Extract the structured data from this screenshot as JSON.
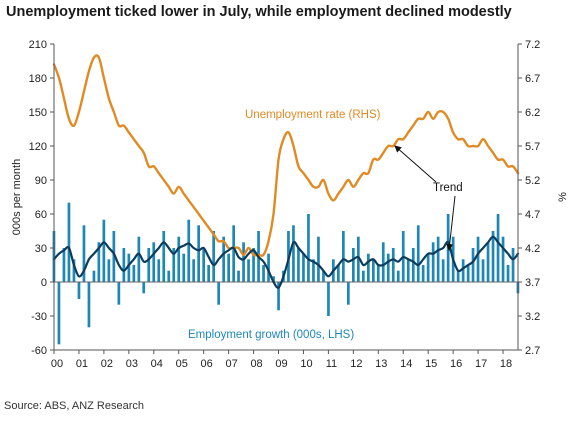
{
  "title": "Unemployment ticked lower in July, while employment declined modestly",
  "source": "Source: ABS, ANZ Research",
  "chart_data": {
    "type": "bar",
    "title": "Unemployment ticked lower in July, while employment declined modestly",
    "ylabel": "000s per month",
    "y2label": "%",
    "ylim": [
      -60,
      210
    ],
    "y2lim": [
      2.7,
      7.2
    ],
    "yticks": [
      "210",
      "180",
      "150",
      "120",
      "90",
      "60",
      "30",
      "0",
      "-30",
      "-60"
    ],
    "y2ticks": [
      "7.2",
      "6.7",
      "6.2",
      "5.7",
      "5.2",
      "4.7",
      "4.2",
      "3.7",
      "3.2",
      "2.7"
    ],
    "xticks": [
      "00",
      "01",
      "02",
      "03",
      "04",
      "05",
      "06",
      "07",
      "08",
      "09",
      "10",
      "11",
      "12",
      "13",
      "14",
      "15",
      "16",
      "17",
      "18"
    ],
    "x_range": [
      2000.0,
      2018.6
    ],
    "grid": false,
    "colors": {
      "employment_bars": "#1f87b5",
      "employment_trend": "#0d3b5c",
      "unemployment": "#e08a23",
      "unemployment_trend": "#cf7512"
    },
    "annotations": {
      "unemployment_label": "Unemployment rate (RHS)",
      "employment_label": "Employment growth (000s, LHS)",
      "trend_label": "Trend"
    },
    "series": [
      {
        "name": "Unemployment rate (RHS)",
        "axis": "right",
        "kind": "line",
        "x": [
          2000.0,
          2000.2,
          2000.4,
          2000.6,
          2000.8,
          2001.0,
          2001.2,
          2001.4,
          2001.6,
          2001.8,
          2002.0,
          2002.2,
          2002.4,
          2002.6,
          2002.8,
          2003.0,
          2003.2,
          2003.4,
          2003.6,
          2003.8,
          2004.0,
          2004.2,
          2004.4,
          2004.6,
          2004.8,
          2005.0,
          2005.2,
          2005.4,
          2005.6,
          2005.8,
          2006.0,
          2006.2,
          2006.4,
          2006.6,
          2006.8,
          2007.0,
          2007.2,
          2007.4,
          2007.6,
          2007.8,
          2008.0,
          2008.2,
          2008.4,
          2008.6,
          2008.8,
          2009.0,
          2009.2,
          2009.4,
          2009.6,
          2009.8,
          2010.0,
          2010.2,
          2010.4,
          2010.6,
          2010.8,
          2011.0,
          2011.2,
          2011.4,
          2011.6,
          2011.8,
          2012.0,
          2012.2,
          2012.4,
          2012.6,
          2012.8,
          2013.0,
          2013.2,
          2013.4,
          2013.6,
          2013.8,
          2014.0,
          2014.2,
          2014.4,
          2014.6,
          2014.8,
          2015.0,
          2015.2,
          2015.4,
          2015.6,
          2015.8,
          2016.0,
          2016.2,
          2016.4,
          2016.6,
          2016.8,
          2017.0,
          2017.2,
          2017.4,
          2017.6,
          2017.8,
          2018.0,
          2018.2,
          2018.4,
          2018.6
        ],
        "values": [
          6.9,
          6.7,
          6.4,
          6.1,
          6.0,
          6.2,
          6.5,
          6.8,
          7.0,
          7.0,
          6.7,
          6.4,
          6.2,
          6.0,
          6.0,
          5.9,
          5.8,
          5.7,
          5.6,
          5.4,
          5.4,
          5.3,
          5.2,
          5.1,
          5.0,
          5.1,
          5.0,
          4.9,
          4.8,
          4.7,
          4.6,
          4.5,
          4.4,
          4.3,
          4.3,
          4.2,
          4.2,
          4.2,
          4.1,
          4.2,
          4.1,
          4.1,
          4.1,
          4.3,
          4.7,
          5.5,
          5.8,
          5.9,
          5.7,
          5.4,
          5.3,
          5.2,
          5.1,
          5.1,
          5.2,
          5.0,
          4.9,
          5.0,
          5.1,
          5.2,
          5.1,
          5.2,
          5.3,
          5.3,
          5.5,
          5.5,
          5.6,
          5.7,
          5.7,
          5.8,
          5.8,
          5.9,
          6.0,
          6.1,
          6.1,
          6.2,
          6.1,
          6.2,
          6.2,
          6.1,
          5.9,
          5.8,
          5.8,
          5.7,
          5.7,
          5.7,
          5.8,
          5.7,
          5.6,
          5.5,
          5.5,
          5.4,
          5.4,
          5.3
        ]
      },
      {
        "name": "Employment growth (000s, LHS)",
        "axis": "left",
        "kind": "bar",
        "x": [
          2000.0,
          2000.2,
          2000.4,
          2000.6,
          2000.8,
          2001.0,
          2001.2,
          2001.4,
          2001.6,
          2001.8,
          2002.0,
          2002.2,
          2002.4,
          2002.6,
          2002.8,
          2003.0,
          2003.2,
          2003.4,
          2003.6,
          2003.8,
          2004.0,
          2004.2,
          2004.4,
          2004.6,
          2004.8,
          2005.0,
          2005.2,
          2005.4,
          2005.6,
          2005.8,
          2006.0,
          2006.2,
          2006.4,
          2006.6,
          2006.8,
          2007.0,
          2007.2,
          2007.4,
          2007.6,
          2007.8,
          2008.0,
          2008.2,
          2008.4,
          2008.6,
          2008.8,
          2009.0,
          2009.2,
          2009.4,
          2009.6,
          2009.8,
          2010.0,
          2010.2,
          2010.4,
          2010.6,
          2010.8,
          2011.0,
          2011.2,
          2011.4,
          2011.6,
          2011.8,
          2012.0,
          2012.2,
          2012.4,
          2012.6,
          2012.8,
          2013.0,
          2013.2,
          2013.4,
          2013.6,
          2013.8,
          2014.0,
          2014.2,
          2014.4,
          2014.6,
          2014.8,
          2015.0,
          2015.2,
          2015.4,
          2015.6,
          2015.8,
          2016.0,
          2016.2,
          2016.4,
          2016.6,
          2016.8,
          2017.0,
          2017.2,
          2017.4,
          2017.6,
          2017.8,
          2018.0,
          2018.2,
          2018.4,
          2018.6
        ],
        "values": [
          45,
          -55,
          30,
          70,
          20,
          -15,
          50,
          -40,
          10,
          35,
          55,
          20,
          45,
          -20,
          30,
          25,
          15,
          40,
          -10,
          30,
          35,
          20,
          45,
          10,
          30,
          40,
          25,
          55,
          20,
          50,
          30,
          15,
          45,
          -20,
          40,
          25,
          50,
          10,
          35,
          20,
          30,
          45,
          15,
          25,
          5,
          -25,
          10,
          45,
          50,
          30,
          25,
          60,
          20,
          40,
          10,
          -30,
          20,
          15,
          45,
          -20,
          30,
          40,
          10,
          25,
          20,
          15,
          35,
          25,
          30,
          10,
          45,
          20,
          30,
          50,
          15,
          25,
          35,
          40,
          20,
          60,
          40,
          10,
          20,
          15,
          30,
          40,
          20,
          35,
          45,
          60,
          40,
          15,
          30,
          -10
        ]
      },
      {
        "name": "Trend",
        "axis": "left",
        "kind": "line",
        "x": [
          2000.0,
          2000.2,
          2000.4,
          2000.6,
          2000.8,
          2001.0,
          2001.2,
          2001.4,
          2001.6,
          2001.8,
          2002.0,
          2002.2,
          2002.4,
          2002.6,
          2002.8,
          2003.0,
          2003.2,
          2003.4,
          2003.6,
          2003.8,
          2004.0,
          2004.2,
          2004.4,
          2004.6,
          2004.8,
          2005.0,
          2005.2,
          2005.4,
          2005.6,
          2005.8,
          2006.0,
          2006.2,
          2006.4,
          2006.6,
          2006.8,
          2007.0,
          2007.2,
          2007.4,
          2007.6,
          2007.8,
          2008.0,
          2008.2,
          2008.4,
          2008.6,
          2008.8,
          2009.0,
          2009.2,
          2009.4,
          2009.6,
          2009.8,
          2010.0,
          2010.2,
          2010.4,
          2010.6,
          2010.8,
          2011.0,
          2011.2,
          2011.4,
          2011.6,
          2011.8,
          2012.0,
          2012.2,
          2012.4,
          2012.6,
          2012.8,
          2013.0,
          2013.2,
          2013.4,
          2013.6,
          2013.8,
          2014.0,
          2014.2,
          2014.4,
          2014.6,
          2014.8,
          2015.0,
          2015.2,
          2015.4,
          2015.6,
          2015.8,
          2016.0,
          2016.2,
          2016.4,
          2016.6,
          2016.8,
          2017.0,
          2017.2,
          2017.4,
          2017.6,
          2017.8,
          2018.0,
          2018.2,
          2018.4,
          2018.6
        ],
        "values": [
          20,
          25,
          28,
          30,
          15,
          5,
          10,
          20,
          25,
          30,
          35,
          30,
          25,
          15,
          10,
          15,
          20,
          25,
          18,
          20,
          25,
          30,
          35,
          30,
          25,
          30,
          32,
          34,
          30,
          28,
          30,
          22,
          15,
          20,
          25,
          28,
          30,
          22,
          20,
          25,
          28,
          22,
          18,
          10,
          0,
          -5,
          5,
          20,
          35,
          30,
          25,
          20,
          18,
          15,
          10,
          5,
          10,
          15,
          20,
          18,
          20,
          22,
          15,
          18,
          20,
          15,
          15,
          18,
          20,
          18,
          22,
          20,
          18,
          15,
          20,
          25,
          25,
          28,
          30,
          35,
          20,
          10,
          12,
          15,
          18,
          25,
          30,
          35,
          40,
          35,
          30,
          25,
          20,
          25
        ]
      }
    ]
  }
}
